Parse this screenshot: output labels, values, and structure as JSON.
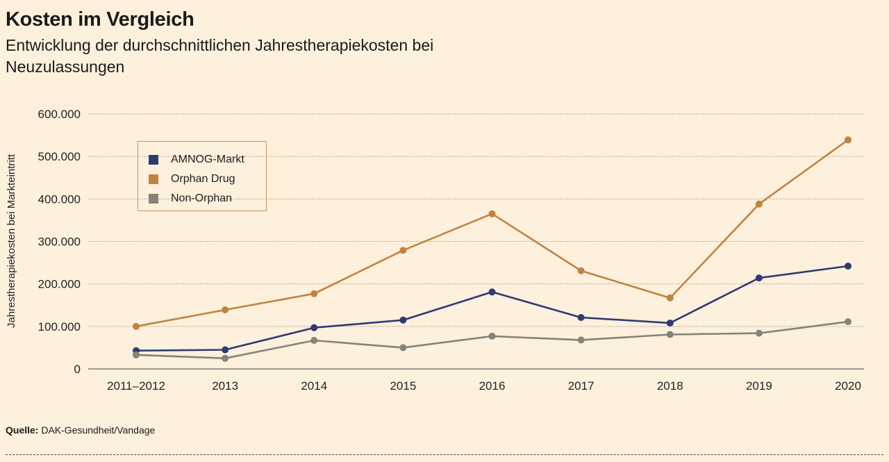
{
  "header": {
    "title": "Kosten im Vergleich",
    "subtitle": "Entwicklung der durchschnittlichen Jahrestherapiekosten bei Neuzulassungen"
  },
  "chart_data": {
    "type": "line",
    "title": "Kosten im Vergleich",
    "subtitle": "Entwicklung der durchschnittlichen Jahrestherapiekosten bei Neuzulassungen",
    "xlabel": "",
    "ylabel": "Jahrestherapiekosten bei Markteintritt",
    "categories": [
      "2011–2012",
      "2013",
      "2014",
      "2015",
      "2016",
      "2017",
      "2018",
      "2019",
      "2020"
    ],
    "ylim": [
      0,
      600000
    ],
    "yticks": [
      0,
      100000,
      200000,
      300000,
      400000,
      500000,
      600000
    ],
    "ytick_labels": [
      "0",
      "100.000",
      "200.000",
      "300.000",
      "400.000",
      "500.000",
      "600.000"
    ],
    "grid": true,
    "legend_position": "top-left",
    "series": [
      {
        "name": "AMNOG-Markt",
        "color": "#2e3b72",
        "values": [
          43000,
          45000,
          97000,
          115000,
          181000,
          121000,
          108000,
          214000,
          242000
        ]
      },
      {
        "name": "Orphan Drug",
        "color": "#c08340",
        "values": [
          100000,
          139000,
          177000,
          279000,
          365000,
          231000,
          167000,
          388000,
          539000
        ]
      },
      {
        "name": "Non-Orphan",
        "color": "#868379",
        "values": [
          33000,
          25000,
          67000,
          50000,
          77000,
          68000,
          81000,
          84000,
          111000
        ]
      }
    ]
  },
  "source": {
    "label": "Quelle:",
    "text": "DAK-Gesundheit/Vandage"
  }
}
